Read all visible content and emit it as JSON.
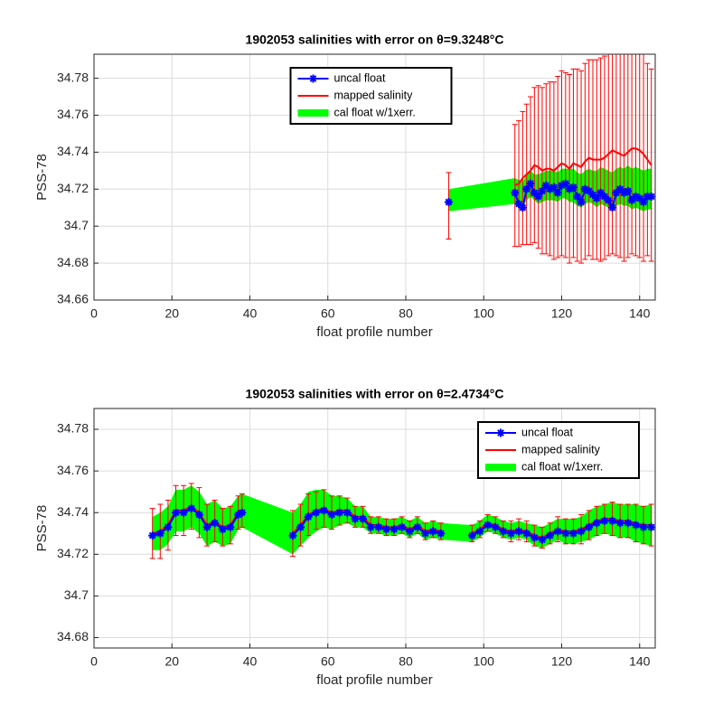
{
  "chart_data": [
    {
      "type": "line",
      "title": "1902053 salinities with error on θ=9.3248°C",
      "x_label": "float profile number",
      "y_label": "PSS-78",
      "x": [
        91,
        108,
        109,
        110,
        111,
        112,
        113,
        114,
        115,
        116,
        117,
        118,
        119,
        120,
        121,
        122,
        123,
        124,
        125,
        126,
        127,
        128,
        129,
        130,
        131,
        132,
        133,
        134,
        135,
        136,
        137,
        138,
        139,
        140,
        141,
        142,
        143
      ],
      "series": [
        {
          "name": "uncal float",
          "color": "#0000ff",
          "values": [
            34.713,
            34.718,
            34.712,
            34.71,
            34.72,
            34.723,
            34.718,
            34.716,
            34.719,
            34.722,
            34.72,
            34.721,
            34.718,
            34.722,
            34.723,
            34.72,
            34.721,
            34.716,
            34.713,
            34.72,
            34.719,
            34.717,
            34.715,
            34.718,
            34.716,
            34.714,
            34.71,
            34.718,
            34.72,
            34.718,
            34.719,
            34.714,
            34.716,
            34.715,
            34.713,
            34.716,
            34.716
          ]
        },
        {
          "name": "mapped salinity",
          "color": "#ff0000",
          "values": [
            34.711,
            34.722,
            34.723,
            34.726,
            34.728,
            34.73,
            34.733,
            34.732,
            34.73,
            34.731,
            34.731,
            34.73,
            34.732,
            34.734,
            34.733,
            34.731,
            34.734,
            34.733,
            34.732,
            34.735,
            34.737,
            34.736,
            34.736,
            34.736,
            34.737,
            34.739,
            34.741,
            34.74,
            34.739,
            34.738,
            34.74,
            34.742,
            34.742,
            34.741,
            34.739,
            34.736,
            34.733
          ],
          "errors": [
            0.018,
            0.033,
            0.034,
            0.036,
            0.038,
            0.04,
            0.042,
            0.044,
            0.045,
            0.046,
            0.047,
            0.048,
            0.049,
            0.05,
            0.05,
            0.051,
            0.051,
            0.052,
            0.052,
            0.053,
            0.053,
            0.054,
            0.054,
            0.055,
            0.055,
            0.055,
            0.056,
            0.056,
            0.056,
            0.057,
            0.057,
            0.057,
            0.058,
            0.058,
            0.058,
            0.052,
            0.052
          ]
        },
        {
          "name": "cal float w/1xerr.",
          "color": "#00ff00",
          "values": [
            34.714,
            34.719,
            34.718,
            34.717,
            34.721,
            34.723,
            34.721,
            34.72,
            34.721,
            34.722,
            34.722,
            34.722,
            34.721,
            34.723,
            34.723,
            34.722,
            34.722,
            34.72,
            34.719,
            34.721,
            34.722,
            34.721,
            34.72,
            34.722,
            34.721,
            34.72,
            34.719,
            34.721,
            34.722,
            34.721,
            34.722,
            34.72,
            34.721,
            34.72,
            34.719,
            34.72,
            34.72
          ],
          "errors": [
            0.006,
            0.007,
            0.007,
            0.007,
            0.007,
            0.007,
            0.007,
            0.008,
            0.008,
            0.008,
            0.008,
            0.008,
            0.008,
            0.008,
            0.008,
            0.009,
            0.009,
            0.009,
            0.009,
            0.009,
            0.009,
            0.009,
            0.01,
            0.01,
            0.01,
            0.01,
            0.01,
            0.01,
            0.01,
            0.01,
            0.011,
            0.011,
            0.011,
            0.011,
            0.011,
            0.011,
            0.011
          ]
        }
      ],
      "xlim": [
        0,
        144
      ],
      "ylim": [
        34.66,
        34.793
      ],
      "xticks": [
        0,
        20,
        40,
        60,
        80,
        100,
        120,
        140
      ],
      "yticks": [
        34.66,
        34.68,
        34.7,
        34.72,
        34.74,
        34.76,
        34.78
      ],
      "grid": true,
      "legend": "north"
    },
    {
      "type": "line",
      "title": "1902053 salinities with error on θ=2.4734°C",
      "x_label": "float profile number",
      "y_label": "PSS-78",
      "x": [
        15,
        17,
        19,
        21,
        23,
        25,
        27,
        29,
        31,
        33,
        35,
        37,
        38,
        51,
        53,
        55,
        57,
        59,
        61,
        63,
        65,
        67,
        69,
        71,
        73,
        75,
        77,
        79,
        81,
        83,
        85,
        87,
        89,
        97,
        99,
        101,
        103,
        105,
        107,
        109,
        111,
        113,
        115,
        117,
        119,
        121,
        123,
        125,
        127,
        129,
        131,
        133,
        135,
        137,
        139,
        141,
        143
      ],
      "series": [
        {
          "name": "uncal float",
          "color": "#0000ff",
          "values": [
            34.729,
            34.73,
            34.733,
            34.74,
            34.74,
            34.742,
            34.739,
            34.733,
            34.735,
            34.732,
            34.733,
            34.739,
            34.74,
            34.729,
            34.733,
            34.738,
            34.74,
            34.741,
            34.739,
            34.74,
            34.74,
            34.737,
            34.737,
            34.733,
            34.733,
            34.732,
            34.732,
            34.733,
            34.731,
            34.733,
            34.73,
            34.731,
            34.73,
            34.729,
            34.731,
            34.734,
            34.733,
            34.731,
            34.73,
            34.731,
            34.73,
            34.728,
            34.727,
            34.729,
            34.731,
            34.73,
            34.73,
            34.731,
            34.733,
            34.735,
            34.736,
            34.736,
            34.735,
            34.735,
            34.734,
            34.733,
            34.733
          ]
        },
        {
          "name": "mapped salinity",
          "color": "#ff0000",
          "values": [
            34.73,
            34.731,
            34.734,
            34.741,
            34.741,
            34.743,
            34.74,
            34.734,
            34.736,
            34.733,
            34.734,
            34.74,
            34.741,
            34.73,
            34.734,
            34.739,
            34.741,
            34.742,
            34.74,
            34.741,
            34.741,
            34.738,
            34.738,
            34.734,
            34.734,
            34.733,
            34.733,
            34.734,
            34.732,
            34.734,
            34.731,
            34.732,
            34.731,
            34.73,
            34.732,
            34.735,
            34.734,
            34.732,
            34.731,
            34.732,
            34.731,
            34.729,
            34.728,
            34.73,
            34.732,
            34.731,
            34.731,
            34.732,
            34.734,
            34.736,
            34.737,
            34.737,
            34.736,
            34.736,
            34.735,
            34.734,
            34.734
          ],
          "errors": [
            0.012,
            0.013,
            0.012,
            0.012,
            0.012,
            0.011,
            0.012,
            0.01,
            0.01,
            0.009,
            0.009,
            0.008,
            0.008,
            0.011,
            0.01,
            0.01,
            0.009,
            0.009,
            0.008,
            0.007,
            0.006,
            0.005,
            0.005,
            0.004,
            0.004,
            0.004,
            0.004,
            0.004,
            0.004,
            0.004,
            0.004,
            0.004,
            0.004,
            0.004,
            0.004,
            0.004,
            0.004,
            0.004,
            0.005,
            0.005,
            0.005,
            0.005,
            0.005,
            0.005,
            0.006,
            0.006,
            0.006,
            0.007,
            0.007,
            0.007,
            0.007,
            0.008,
            0.008,
            0.008,
            0.009,
            0.009,
            0.01
          ]
        },
        {
          "name": "cal float w/1xerr.",
          "color": "#00ff00",
          "values": [
            34.73,
            34.731,
            34.734,
            34.741,
            34.741,
            34.743,
            34.74,
            34.734,
            34.736,
            34.733,
            34.734,
            34.74,
            34.741,
            34.73,
            34.734,
            34.739,
            34.741,
            34.742,
            34.74,
            34.741,
            34.741,
            34.738,
            34.738,
            34.734,
            34.734,
            34.733,
            34.733,
            34.734,
            34.732,
            34.734,
            34.731,
            34.732,
            34.731,
            34.73,
            34.732,
            34.735,
            34.734,
            34.732,
            34.731,
            34.732,
            34.731,
            34.729,
            34.728,
            34.73,
            34.732,
            34.731,
            34.731,
            34.732,
            34.734,
            34.736,
            34.737,
            34.737,
            34.736,
            34.736,
            34.735,
            34.734,
            34.734
          ],
          "errors": [
            0.008,
            0.009,
            0.009,
            0.01,
            0.01,
            0.01,
            0.01,
            0.01,
            0.01,
            0.009,
            0.009,
            0.008,
            0.008,
            0.01,
            0.01,
            0.011,
            0.01,
            0.009,
            0.008,
            0.007,
            0.006,
            0.005,
            0.005,
            0.004,
            0.004,
            0.004,
            0.004,
            0.004,
            0.004,
            0.004,
            0.004,
            0.004,
            0.004,
            0.004,
            0.004,
            0.004,
            0.004,
            0.004,
            0.004,
            0.004,
            0.004,
            0.005,
            0.005,
            0.005,
            0.005,
            0.006,
            0.006,
            0.006,
            0.007,
            0.007,
            0.007,
            0.008,
            0.008,
            0.008,
            0.009,
            0.009,
            0.01
          ]
        }
      ],
      "xlim": [
        0,
        144
      ],
      "ylim": [
        34.675,
        34.79
      ],
      "xticks": [
        0,
        20,
        40,
        60,
        80,
        100,
        120,
        140
      ],
      "yticks": [
        34.68,
        34.7,
        34.72,
        34.74,
        34.76,
        34.78
      ],
      "grid": true,
      "legend": "northeast"
    }
  ]
}
